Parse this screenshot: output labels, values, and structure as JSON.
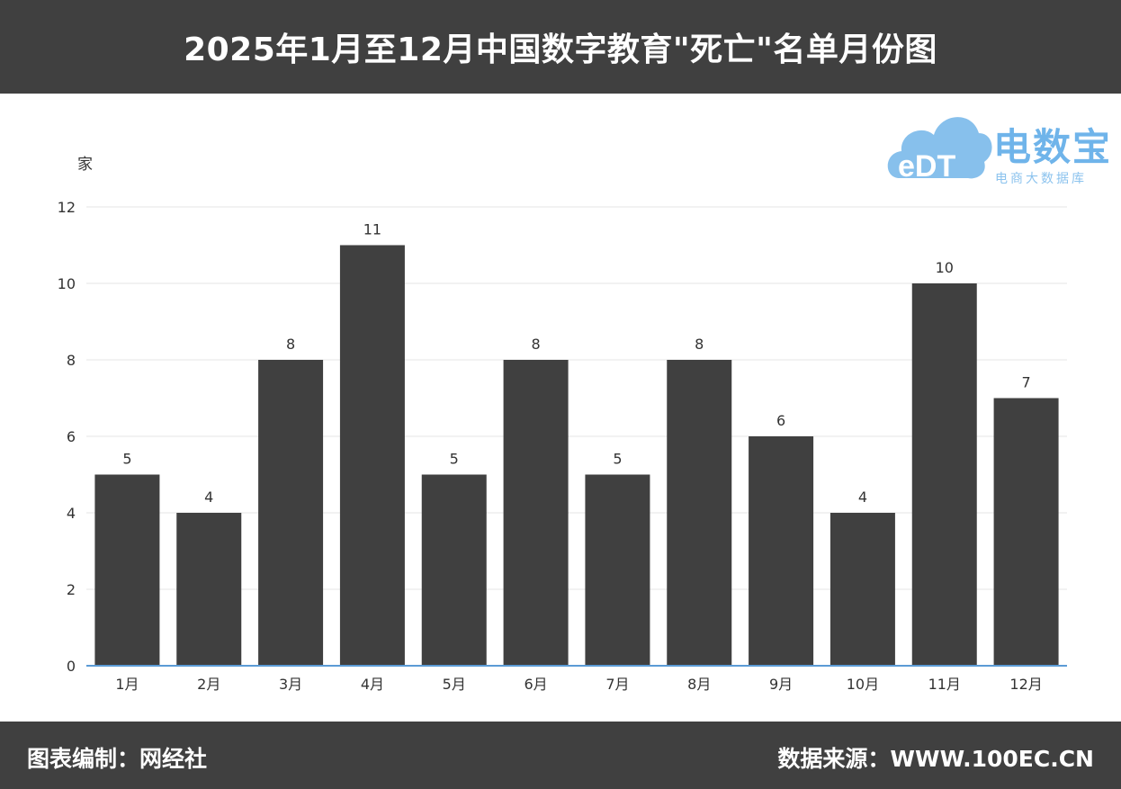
{
  "header": {
    "title": "2025年1月至12月中国数字教育\"死亡\"名单月份图"
  },
  "footer": {
    "left": "图表编制：网经社",
    "right": "数据来源：WWW.100EC.CN"
  },
  "logo": {
    "main": "电数宝",
    "sub": "电商大数据库",
    "mark": "eDT"
  },
  "colors": {
    "bar": "#404040",
    "header_bg": "#404040",
    "axis": "#5b9bd5",
    "grid": "#e6e6e6",
    "logo": "#6fb4ea"
  },
  "chart_data": {
    "type": "bar",
    "title": "2025年1月至12月中国数字教育\"死亡\"名单月份图",
    "ylabel": "家",
    "xlabel": "",
    "categories": [
      "1月",
      "2月",
      "3月",
      "4月",
      "5月",
      "6月",
      "7月",
      "8月",
      "9月",
      "10月",
      "11月",
      "12月"
    ],
    "values": [
      5,
      4,
      8,
      11,
      5,
      8,
      5,
      8,
      6,
      4,
      10,
      7
    ],
    "ylim": [
      0,
      12
    ],
    "yticks": [
      0,
      2,
      4,
      6,
      8,
      10,
      12
    ],
    "grid": true,
    "data_labels": true
  }
}
